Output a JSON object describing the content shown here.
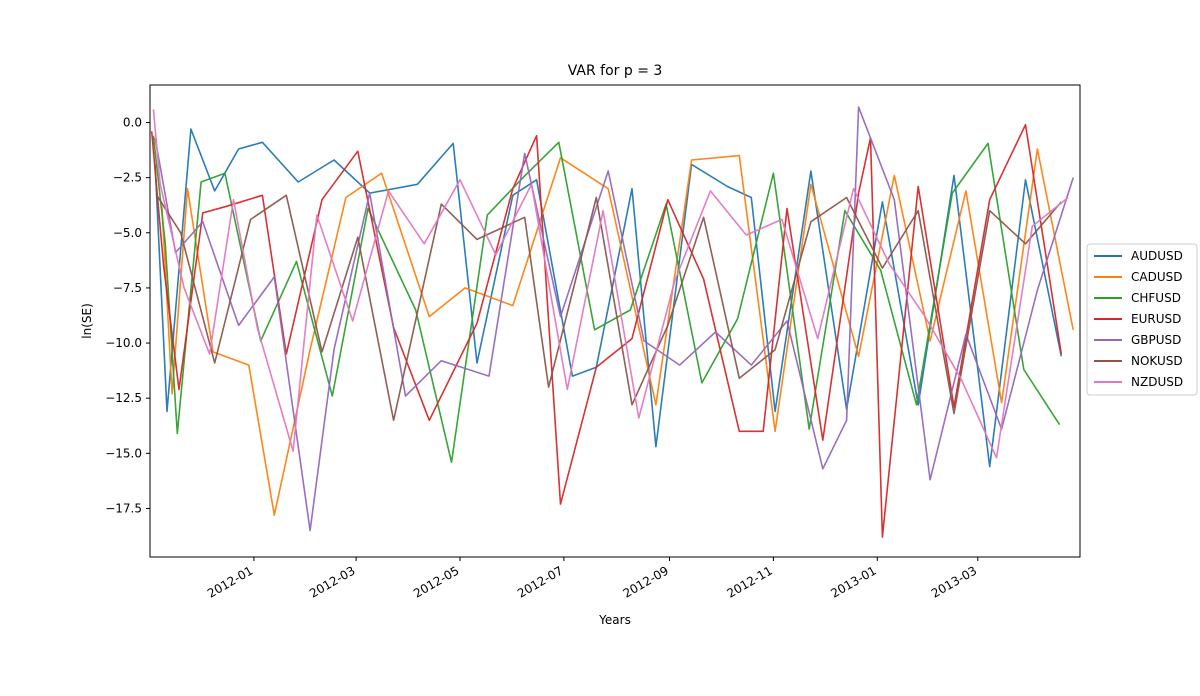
{
  "chart_data": {
    "type": "line",
    "title": "VAR for p = 3",
    "xlabel": "Years",
    "ylabel": "ln(SE)",
    "xlim": [
      "2011-11-01",
      "2013-04-30"
    ],
    "ylim": [
      -19.7,
      1.7
    ],
    "y_ticks": [
      0.0,
      -2.5,
      -5.0,
      -7.5,
      -10.0,
      -12.5,
      -15.0,
      -17.5
    ],
    "y_tick_labels": [
      "0.0",
      "−2.5",
      "−5.0",
      "−7.5",
      "−10.0",
      "−12.5",
      "−15.0",
      "−17.5"
    ],
    "x_ticks": [
      "2012-01-01",
      "2012-03-01",
      "2012-05-01",
      "2012-07-01",
      "2012-09-01",
      "2012-11-01",
      "2013-01-01",
      "2013-03-01"
    ],
    "x_tick_labels": [
      "2012-01",
      "2012-03",
      "2012-05",
      "2012-07",
      "2012-09",
      "2012-11",
      "2013-01",
      "2013-03"
    ],
    "grid": false,
    "legend_position": "outside-right",
    "series": [
      {
        "name": "AUDUSD",
        "color": "#1f77b4",
        "x": [
          "2011-11-04",
          "2011-11-11",
          "2011-11-25",
          "2011-12-09",
          "2011-12-23",
          "2012-01-06",
          "2012-01-27",
          "2012-02-17",
          "2012-03-09",
          "2012-04-06",
          "2012-04-27",
          "2012-05-11",
          "2012-06-01",
          "2012-06-15",
          "2012-07-06",
          "2012-07-20",
          "2012-08-10",
          "2012-08-24",
          "2012-09-14",
          "2012-10-05",
          "2012-10-19",
          "2012-11-02",
          "2012-11-23",
          "2012-12-14",
          "2013-01-04",
          "2013-01-25",
          "2013-02-15",
          "2013-03-08",
          "2013-03-29",
          "2013-04-19"
        ],
        "values": [
          -1.9,
          -13.1,
          -0.3,
          -3.1,
          -1.2,
          -0.9,
          -2.7,
          -1.7,
          -3.2,
          -2.8,
          -0.95,
          -10.9,
          -3.3,
          -2.6,
          -11.5,
          -11.1,
          -3.0,
          -14.7,
          -1.9,
          -2.9,
          -3.4,
          -13.1,
          -2.2,
          -13.0,
          -3.6,
          -12.8,
          -2.4,
          -15.6,
          -2.6,
          -10.6
        ]
      },
      {
        "name": "CADUSD",
        "color": "#ff7f0e",
        "x": [
          "2011-11-08",
          "2011-11-14",
          "2011-11-23",
          "2011-12-08",
          "2011-12-29",
          "2012-01-13",
          "2012-02-03",
          "2012-02-24",
          "2012-03-16",
          "2012-04-13",
          "2012-05-04",
          "2012-06-01",
          "2012-06-29",
          "2012-07-27",
          "2012-08-24",
          "2012-09-14",
          "2012-10-12",
          "2012-11-02",
          "2012-11-23",
          "2012-12-21",
          "2013-01-11",
          "2013-02-01",
          "2013-02-22",
          "2013-03-15",
          "2013-04-05",
          "2013-04-26"
        ],
        "values": [
          -3.8,
          -12.3,
          -3.0,
          -10.4,
          -11.0,
          -17.8,
          -10.3,
          -3.4,
          -2.3,
          -8.8,
          -7.5,
          -8.3,
          -1.6,
          -3.0,
          -12.8,
          -1.7,
          -1.5,
          -14.0,
          -2.8,
          -10.6,
          -2.4,
          -9.9,
          -3.1,
          -12.7,
          -1.2,
          -9.4
        ]
      },
      {
        "name": "CHFUSD",
        "color": "#2ca02c",
        "x": [
          "2011-11-03",
          "2011-11-10",
          "2011-11-17",
          "2011-12-01",
          "2011-12-15",
          "2012-01-05",
          "2012-01-26",
          "2012-02-16",
          "2012-03-08",
          "2012-04-05",
          "2012-04-26",
          "2012-05-17",
          "2012-06-07",
          "2012-06-28",
          "2012-07-19",
          "2012-08-09",
          "2012-08-30",
          "2012-09-20",
          "2012-10-11",
          "2012-11-01",
          "2012-11-22",
          "2012-12-13",
          "2013-01-03",
          "2013-01-24",
          "2013-02-14",
          "2013-03-07",
          "2013-03-28",
          "2013-04-18"
        ],
        "values": [
          -0.6,
          -5.5,
          -14.1,
          -2.7,
          -2.3,
          -9.9,
          -6.3,
          -12.4,
          -3.9,
          -8.5,
          -15.4,
          -4.2,
          -2.5,
          -0.9,
          -9.4,
          -8.5,
          -3.7,
          -11.8,
          -8.9,
          -2.3,
          -13.9,
          -4.0,
          -6.7,
          -12.8,
          -3.2,
          -0.95,
          -11.2,
          -13.7
        ]
      },
      {
        "name": "EURUSD",
        "color": "#d62728",
        "x": [
          "2011-11-02",
          "2011-11-09",
          "2011-11-18",
          "2011-12-02",
          "2011-12-16",
          "2012-01-06",
          "2012-01-20",
          "2012-02-10",
          "2012-03-02",
          "2012-03-23",
          "2012-04-13",
          "2012-05-11",
          "2012-06-01",
          "2012-06-15",
          "2012-06-29",
          "2012-07-20",
          "2012-08-10",
          "2012-08-31",
          "2012-09-21",
          "2012-10-12",
          "2012-10-26",
          "2012-11-09",
          "2012-11-30",
          "2012-12-21",
          "2012-12-28",
          "2013-01-04",
          "2013-01-25",
          "2013-02-15",
          "2013-03-08",
          "2013-03-29",
          "2013-04-19"
        ],
        "values": [
          -0.4,
          -6.5,
          -12.1,
          -4.1,
          -3.8,
          -3.3,
          -10.5,
          -3.5,
          -1.3,
          -9.3,
          -13.5,
          -9.1,
          -3.0,
          -0.6,
          -17.3,
          -11.1,
          -9.8,
          -3.5,
          -7.1,
          -14.0,
          -14.0,
          -3.9,
          -14.4,
          -3.2,
          -0.7,
          -18.8,
          -2.9,
          -12.9,
          -3.5,
          -0.1,
          -10.5
        ]
      },
      {
        "name": "GBPUSD",
        "color": "#9467bd",
        "x": [
          "2011-11-04",
          "2011-11-16",
          "2011-12-02",
          "2011-12-23",
          "2012-01-13",
          "2012-02-03",
          "2012-02-17",
          "2012-03-09",
          "2012-03-30",
          "2012-04-20",
          "2012-05-18",
          "2012-06-08",
          "2012-06-29",
          "2012-07-27",
          "2012-08-17",
          "2012-09-07",
          "2012-09-28",
          "2012-10-19",
          "2012-11-09",
          "2012-11-30",
          "2012-12-14",
          "2012-12-21",
          "2013-01-11",
          "2013-02-01",
          "2013-02-22",
          "2013-03-15",
          "2013-04-05",
          "2013-04-26"
        ],
        "values": [
          -0.7,
          -5.9,
          -4.5,
          -9.2,
          -7.0,
          -18.5,
          -10.3,
          -3.2,
          -12.4,
          -10.8,
          -11.5,
          -1.4,
          -8.8,
          -2.2,
          -9.9,
          -11.0,
          -9.5,
          -11.0,
          -9.0,
          -15.7,
          -13.5,
          0.7,
          -3.5,
          -16.2,
          -9.6,
          -13.9,
          -7.6,
          -2.5
        ]
      },
      {
        "name": "NOKUSD",
        "color": "#8c564b",
        "x": [
          "2011-11-05",
          "2011-11-19",
          "2011-12-09",
          "2011-12-30",
          "2012-01-20",
          "2012-02-10",
          "2012-03-02",
          "2012-03-23",
          "2012-04-20",
          "2012-05-11",
          "2012-06-08",
          "2012-06-22",
          "2012-07-20",
          "2012-08-10",
          "2012-08-31",
          "2012-09-21",
          "2012-10-12",
          "2012-11-02",
          "2012-11-23",
          "2012-12-14",
          "2013-01-04",
          "2013-01-25",
          "2013-02-15",
          "2013-03-08",
          "2013-03-29",
          "2013-04-19"
        ],
        "values": [
          -3.3,
          -5.0,
          -10.9,
          -4.4,
          -3.3,
          -10.4,
          -5.2,
          -13.5,
          -3.7,
          -5.3,
          -4.3,
          -12.0,
          -3.4,
          -12.8,
          -9.2,
          -4.3,
          -11.6,
          -10.3,
          -4.5,
          -3.4,
          -6.6,
          -4.0,
          -13.2,
          -4.0,
          -5.5,
          -3.6
        ]
      },
      {
        "name": "NZDUSD",
        "color": "#e377c2",
        "x": [
          "2011-11-03",
          "2011-11-07",
          "2011-11-21",
          "2011-12-06",
          "2011-12-20",
          "2012-01-03",
          "2012-01-24",
          "2012-02-07",
          "2012-02-28",
          "2012-03-20",
          "2012-04-10",
          "2012-05-01",
          "2012-05-22",
          "2012-06-12",
          "2012-07-03",
          "2012-07-24",
          "2012-08-14",
          "2012-09-04",
          "2012-09-25",
          "2012-10-16",
          "2012-11-06",
          "2012-11-27",
          "2012-12-18",
          "2013-01-08",
          "2013-01-29",
          "2013-02-19",
          "2013-03-12",
          "2013-04-02",
          "2013-04-23"
        ],
        "values": [
          0.6,
          -2.8,
          -7.5,
          -10.5,
          -3.5,
          -9.3,
          -14.9,
          -4.2,
          -9.0,
          -3.1,
          -5.5,
          -2.6,
          -6.0,
          -2.8,
          -12.1,
          -4.0,
          -13.4,
          -7.2,
          -3.1,
          -5.1,
          -4.4,
          -9.8,
          -3.0,
          -6.4,
          -8.8,
          -11.6,
          -15.2,
          -4.7,
          -3.4
        ]
      }
    ]
  }
}
